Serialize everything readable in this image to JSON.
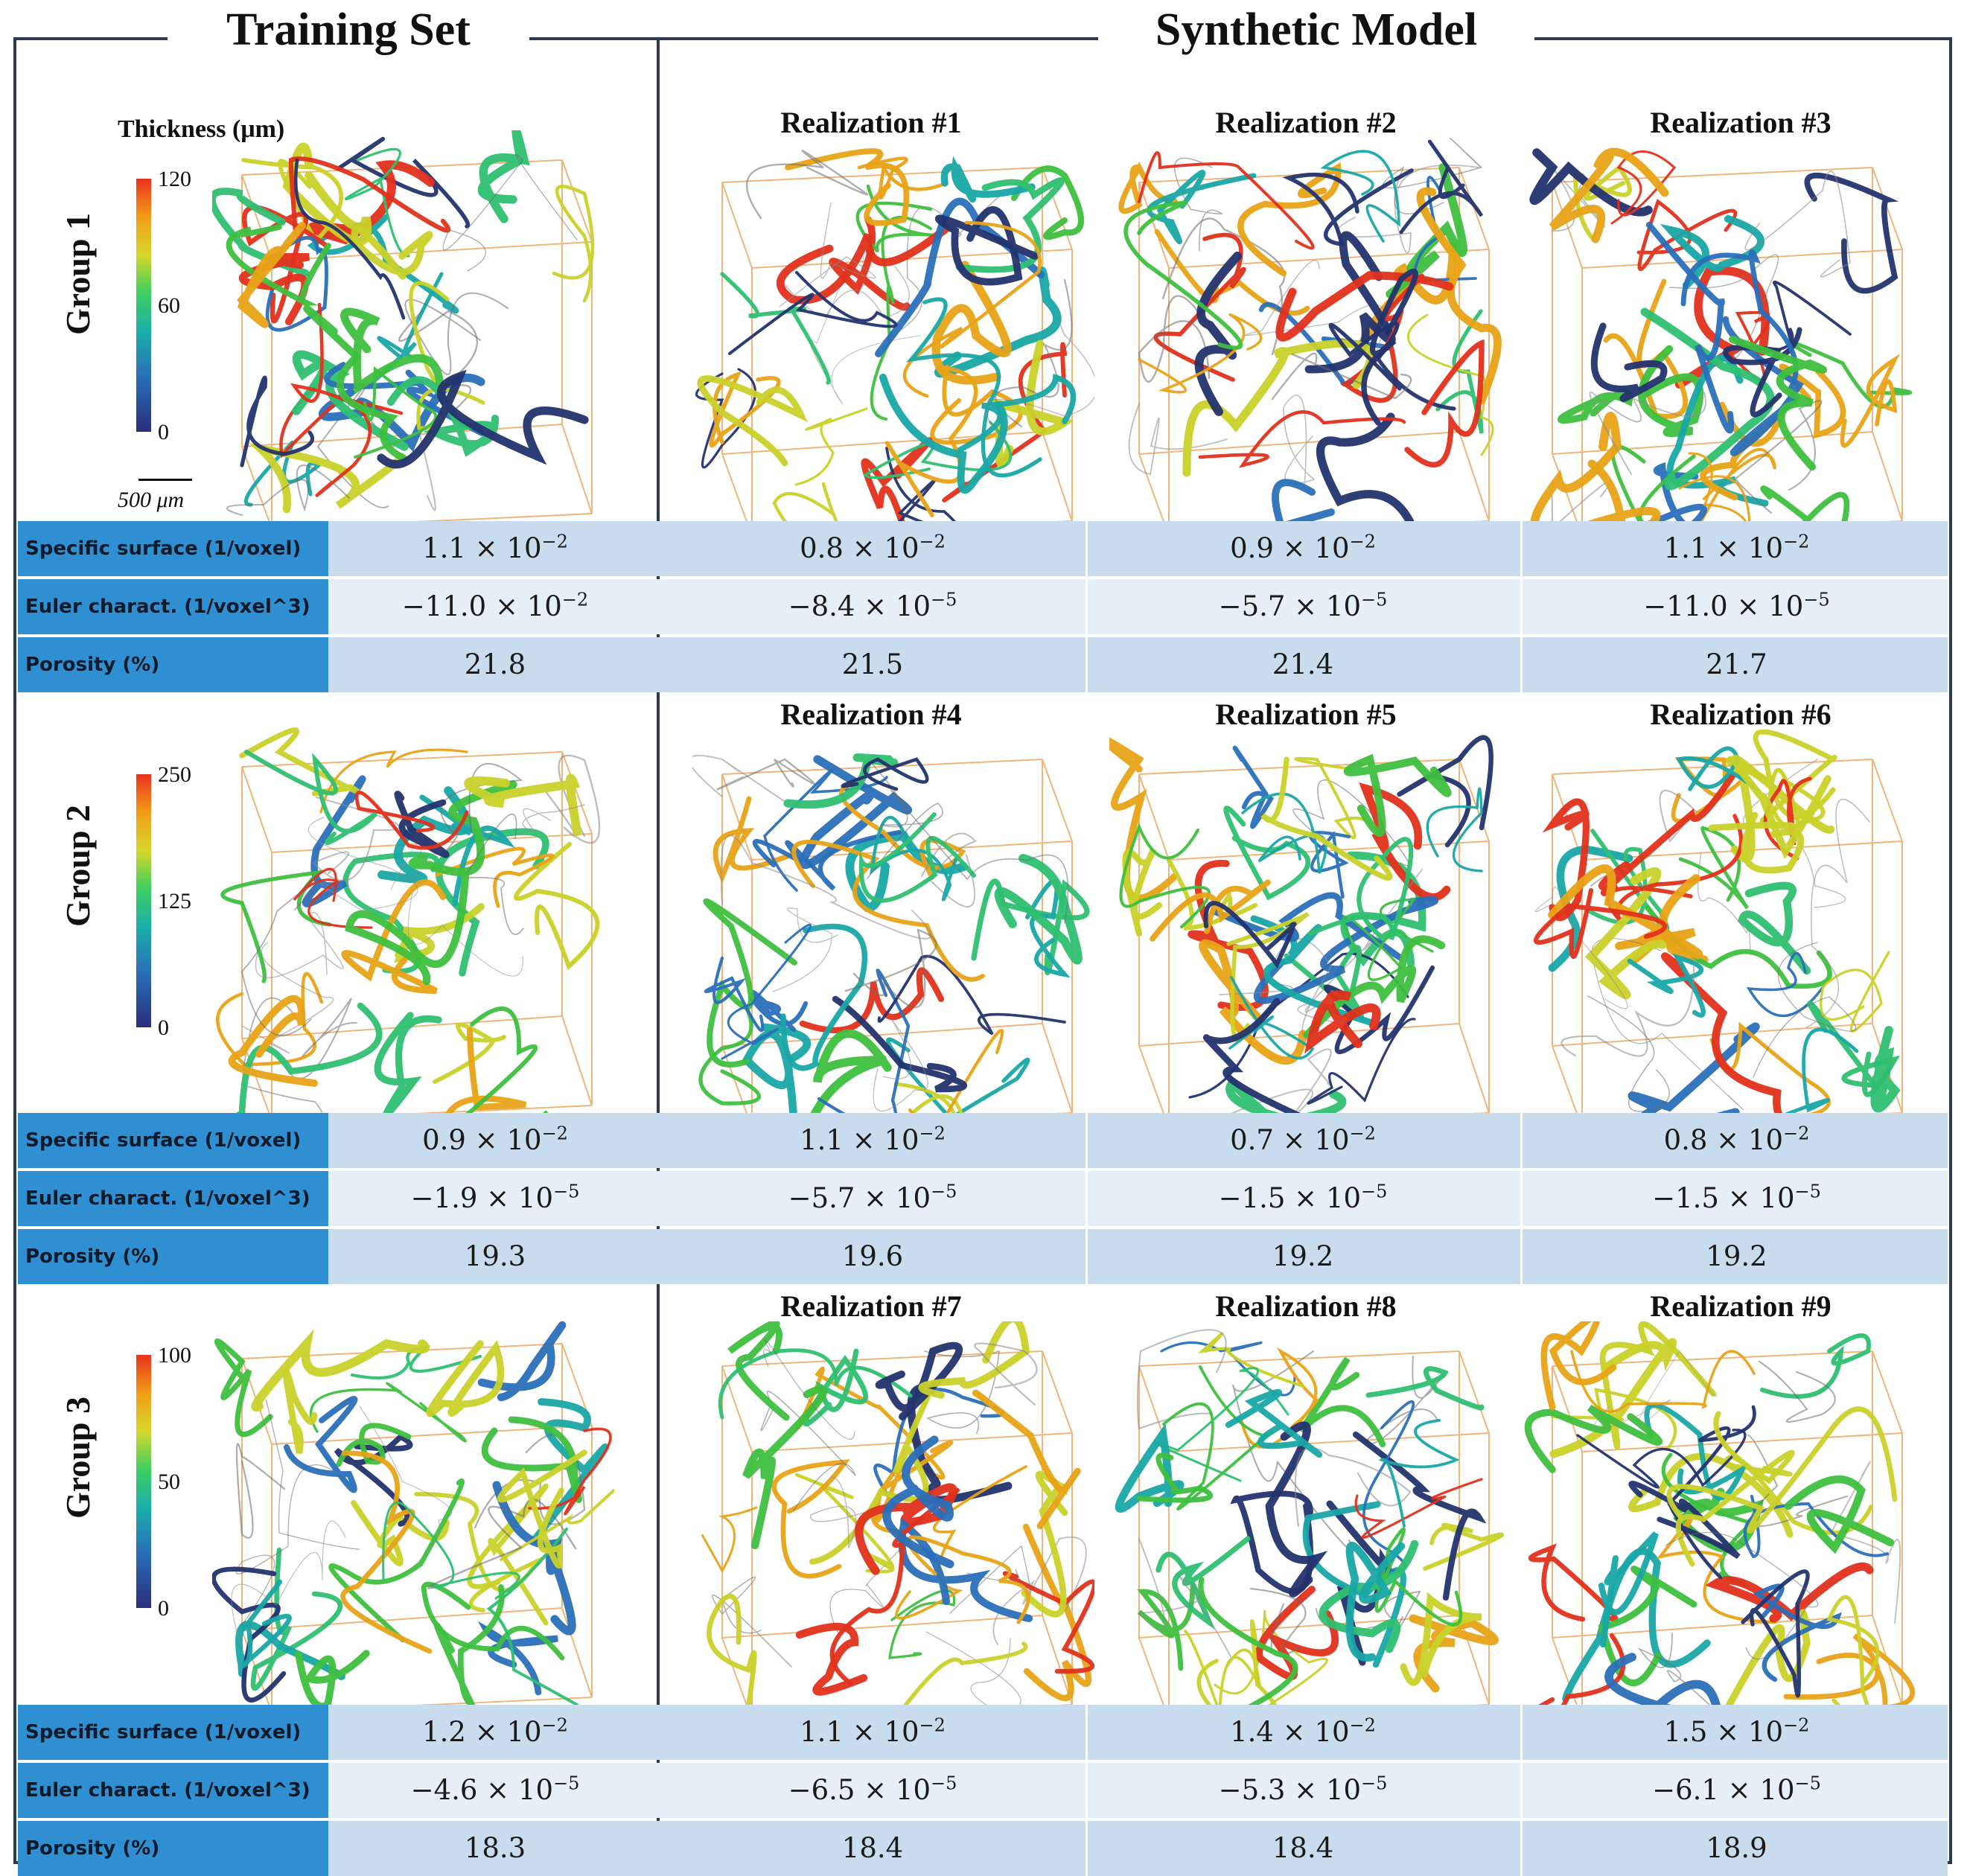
{
  "header": {
    "training_set": "Training Set",
    "synthetic_model": "Synthetic Model"
  },
  "colorbar_title": "Thickness (μm)",
  "scale_bar_label": "500 μm",
  "colors": {
    "row_label_bg": "#2f8fd0",
    "row_dark": "#c9dcee",
    "row_light": "#e6eff8",
    "frame": "#2b3a55",
    "box_edge": "#f0b57a"
  },
  "row_labels": {
    "specific_surface": "Specific surface (1/voxel)",
    "euler": "Euler charact. (1/voxel^3)",
    "porosity": "Porosity (%)"
  },
  "groups": [
    {
      "label": "Group 1",
      "colorbar_ticks": [
        "120",
        "60",
        "0"
      ],
      "realizations": [
        "Realization #1",
        "Realization #2",
        "Realization #3"
      ],
      "specific_surface": [
        {
          "m": "1.1 × 10",
          "e": "−2"
        },
        {
          "m": "0.8 × 10",
          "e": "−2"
        },
        {
          "m": "0.9 × 10",
          "e": "−2"
        },
        {
          "m": "1.1 × 10",
          "e": "−2"
        }
      ],
      "euler": [
        {
          "m": "−11.0 × 10",
          "e": "−2"
        },
        {
          "m": "−8.4 × 10",
          "e": "−5"
        },
        {
          "m": "−5.7 × 10",
          "e": "−5"
        },
        {
          "m": "−11.0 × 10",
          "e": "−5"
        }
      ],
      "porosity": [
        "21.8",
        "21.5",
        "21.4",
        "21.7"
      ]
    },
    {
      "label": "Group 2",
      "colorbar_ticks": [
        "250",
        "125",
        "0"
      ],
      "realizations": [
        "Realization #4",
        "Realization #5",
        "Realization #6"
      ],
      "specific_surface": [
        {
          "m": "0.9 × 10",
          "e": "−2"
        },
        {
          "m": "1.1 × 10",
          "e": "−2"
        },
        {
          "m": "0.7 × 10",
          "e": "−2"
        },
        {
          "m": "0.8 × 10",
          "e": "−2"
        }
      ],
      "euler": [
        {
          "m": "−1.9 × 10",
          "e": "−5"
        },
        {
          "m": "−5.7 × 10",
          "e": "−5"
        },
        {
          "m": "−1.5 × 10",
          "e": "−5"
        },
        {
          "m": "−1.5 × 10",
          "e": "−5"
        }
      ],
      "porosity": [
        "19.3",
        "19.6",
        "19.2",
        "19.2"
      ]
    },
    {
      "label": "Group 3",
      "colorbar_ticks": [
        "100",
        "50",
        "0"
      ],
      "realizations": [
        "Realization #7",
        "Realization #8",
        "Realization #9"
      ],
      "specific_surface": [
        {
          "m": "1.2 × 10",
          "e": "−2"
        },
        {
          "m": "1.1 × 10",
          "e": "−2"
        },
        {
          "m": "1.4 × 10",
          "e": "−2"
        },
        {
          "m": "1.5 × 10",
          "e": "−2"
        }
      ],
      "euler": [
        {
          "m": "−4.6 × 10",
          "e": "−5"
        },
        {
          "m": "−6.5 × 10",
          "e": "−5"
        },
        {
          "m": "−5.3 × 10",
          "e": "−5"
        },
        {
          "m": "−6.1 × 10",
          "e": "−5"
        }
      ],
      "porosity": [
        "18.3",
        "18.4",
        "18.4",
        "18.9"
      ]
    }
  ]
}
